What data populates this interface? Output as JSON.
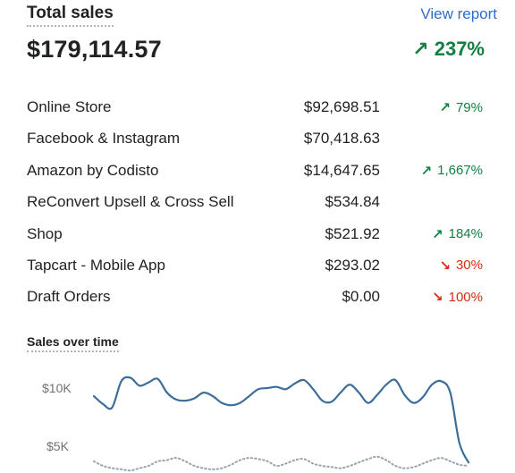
{
  "header": {
    "title": "Total sales",
    "view_report": "View report"
  },
  "total": {
    "amount": "$179,114.57",
    "change": "237%",
    "trend": "up"
  },
  "channels": [
    {
      "label": "Online Store",
      "amount": "$92,698.51",
      "change": "79%",
      "trend": "up"
    },
    {
      "label": "Facebook & Instagram",
      "amount": "$70,418.63",
      "change": "",
      "trend": ""
    },
    {
      "label": "Amazon by Codisto",
      "amount": "$14,647.65",
      "change": "1,667%",
      "trend": "up"
    },
    {
      "label": "ReConvert Upsell & Cross Sell",
      "amount": "$534.84",
      "change": "",
      "trend": ""
    },
    {
      "label": "Shop",
      "amount": "$521.92",
      "change": "184%",
      "trend": "up"
    },
    {
      "label": "Tapcart - Mobile App",
      "amount": "$293.02",
      "change": "30%",
      "trend": "down"
    },
    {
      "label": "Draft Orders",
      "amount": "$0.00",
      "change": "100%",
      "trend": "down"
    }
  ],
  "colors": {
    "up": "#108043",
    "down": "#d72c0d",
    "link": "#2c6ecb",
    "line": "#3d6d99",
    "comparison": "#9aa3ad"
  },
  "chart": {
    "title": "Sales over time",
    "y_ticks": [
      "$10K",
      "$5K"
    ]
  },
  "chart_data": {
    "type": "line",
    "title": "Sales over time",
    "xlabel": "",
    "ylabel": "",
    "y_ticks": [
      10000,
      5000
    ],
    "series": [
      {
        "values": [
          9300,
          8600,
          8300,
          10600,
          10900,
          10200,
          10500,
          10800,
          9600,
          9000,
          8900,
          9100,
          9600,
          9300,
          8700,
          8500,
          8700,
          9300,
          9900,
          10000,
          10100,
          9900,
          10400,
          10700,
          9900,
          8900,
          8800,
          9600,
          10300,
          9600,
          8700,
          9400,
          10300,
          10700,
          9400,
          8700,
          9200,
          10300,
          10600,
          9600,
          5200,
          3500
        ]
      },
      {
        "values": [
          3600,
          3200,
          3000,
          2900,
          2800,
          3000,
          3200,
          3600,
          3700,
          3900,
          3600,
          3200,
          3000,
          2900,
          3000,
          3300,
          3700,
          3900,
          3800,
          3600,
          3200,
          3400,
          3700,
          3800,
          3400,
          3200,
          3100,
          3000,
          3200,
          3500,
          3800,
          4000,
          3700,
          3200,
          3000,
          3100,
          3400,
          3700,
          3900,
          3600,
          3300,
          3200
        ]
      }
    ]
  }
}
